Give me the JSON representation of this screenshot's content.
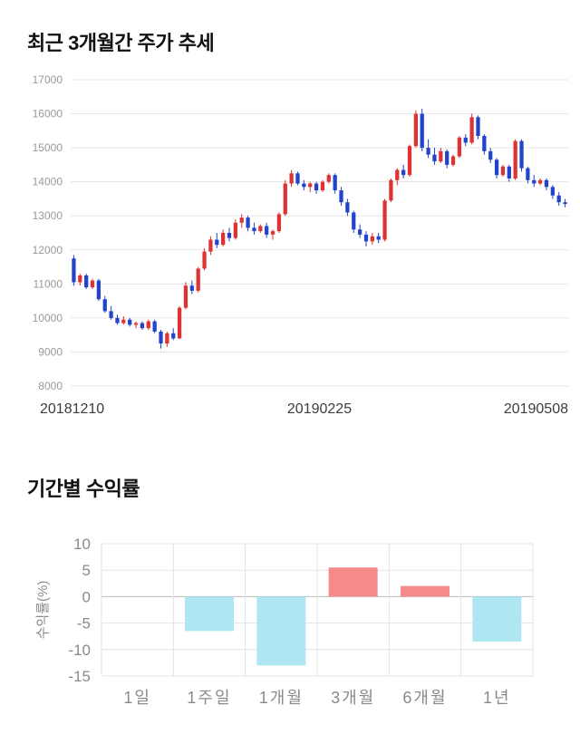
{
  "page": {
    "section1_title": "최근 3개월간 주가 추세",
    "section2_title": "기간별 수익률"
  },
  "chart_data": [
    {
      "type": "candlestick",
      "title": "최근 3개월간 주가 추세",
      "ylim": [
        8000,
        17000
      ],
      "yticks": [
        17000,
        16000,
        15000,
        14000,
        13000,
        12000,
        11000,
        10000,
        9000,
        8000
      ],
      "xticks": [
        "20181210",
        "20190225",
        "20190508"
      ],
      "up_color": "#dd3333",
      "down_color": "#2244cc",
      "grid_color": "#e6e6e6",
      "tick_color": "#999999",
      "xlabel_color": "#3c3c3c",
      "candles": [
        [
          11750,
          11850,
          10950,
          11050
        ],
        [
          11050,
          11300,
          10950,
          11250
        ],
        [
          11250,
          11300,
          10850,
          10900
        ],
        [
          10900,
          11150,
          10850,
          11100
        ],
        [
          11100,
          11150,
          10500,
          10550
        ],
        [
          10550,
          10650,
          10150,
          10200
        ],
        [
          10200,
          10350,
          9950,
          10000
        ],
        [
          10000,
          10100,
          9800,
          9850
        ],
        [
          9850,
          10050,
          9800,
          9950
        ],
        [
          9950,
          10000,
          9750,
          9800
        ],
        [
          9800,
          9900,
          9700,
          9850
        ],
        [
          9850,
          9900,
          9650,
          9700
        ],
        [
          9700,
          9950,
          9650,
          9900
        ],
        [
          9900,
          9950,
          9550,
          9600
        ],
        [
          9600,
          9650,
          9100,
          9250
        ],
        [
          9250,
          9600,
          9150,
          9550
        ],
        [
          9550,
          9700,
          9350,
          9400
        ],
        [
          9400,
          10350,
          9380,
          10300
        ],
        [
          10300,
          11050,
          10250,
          10950
        ],
        [
          10950,
          11100,
          10700,
          10800
        ],
        [
          10800,
          11500,
          10750,
          11450
        ],
        [
          11450,
          12050,
          11400,
          11950
        ],
        [
          11950,
          12400,
          11850,
          12300
        ],
        [
          12300,
          12500,
          12050,
          12150
        ],
        [
          12150,
          12600,
          12100,
          12500
        ],
        [
          12500,
          12650,
          12250,
          12350
        ],
        [
          12350,
          12900,
          12300,
          12800
        ],
        [
          12800,
          13050,
          12650,
          12950
        ],
        [
          12950,
          13000,
          12550,
          12650
        ],
        [
          12650,
          12800,
          12450,
          12550
        ],
        [
          12550,
          12750,
          12500,
          12700
        ],
        [
          12700,
          12800,
          12350,
          12450
        ],
        [
          12450,
          12600,
          12300,
          12550
        ],
        [
          12550,
          13100,
          12500,
          13050
        ],
        [
          13050,
          14050,
          13000,
          13950
        ],
        [
          13950,
          14350,
          13850,
          14250
        ],
        [
          14250,
          14300,
          13900,
          13950
        ],
        [
          13950,
          14050,
          13750,
          13850
        ],
        [
          13850,
          14000,
          13700,
          13950
        ],
        [
          13950,
          14000,
          13650,
          13750
        ],
        [
          13750,
          14050,
          13700,
          14000
        ],
        [
          14000,
          14250,
          13950,
          14200
        ],
        [
          14200,
          14250,
          13650,
          13750
        ],
        [
          13750,
          13850,
          13300,
          13400
        ],
        [
          13400,
          13500,
          13000,
          13100
        ],
        [
          13100,
          13150,
          12500,
          12600
        ],
        [
          12600,
          12750,
          12350,
          12450
        ],
        [
          12450,
          12550,
          12100,
          12250
        ],
        [
          12250,
          12500,
          12150,
          12400
        ],
        [
          12400,
          12500,
          12200,
          12300
        ],
        [
          12300,
          13500,
          12250,
          13450
        ],
        [
          13450,
          14100,
          13400,
          14050
        ],
        [
          14050,
          14400,
          13900,
          14350
        ],
        [
          14350,
          14500,
          14100,
          14200
        ],
        [
          14200,
          15100,
          14150,
          15050
        ],
        [
          15050,
          16100,
          15000,
          16000
        ],
        [
          16000,
          16150,
          14900,
          15000
        ],
        [
          15000,
          15250,
          14700,
          14800
        ],
        [
          14800,
          15000,
          14500,
          14600
        ],
        [
          14600,
          15000,
          14550,
          14900
        ],
        [
          14900,
          14950,
          14400,
          14500
        ],
        [
          14500,
          14800,
          14450,
          14750
        ],
        [
          14750,
          15350,
          14700,
          15300
        ],
        [
          15300,
          15400,
          15050,
          15150
        ],
        [
          15150,
          16000,
          15100,
          15900
        ],
        [
          15900,
          15950,
          15250,
          15350
        ],
        [
          15350,
          15400,
          14800,
          14900
        ],
        [
          14900,
          15000,
          14550,
          14650
        ],
        [
          14650,
          14700,
          14100,
          14200
        ],
        [
          14200,
          14500,
          14150,
          14450
        ],
        [
          14450,
          14500,
          14000,
          14100
        ],
        [
          14100,
          15250,
          14050,
          15200
        ],
        [
          15200,
          15250,
          14300,
          14400
        ],
        [
          14400,
          14450,
          13950,
          14050
        ],
        [
          14050,
          14200,
          13850,
          13950
        ],
        [
          13950,
          14100,
          13900,
          14050
        ],
        [
          14050,
          14100,
          13750,
          13850
        ],
        [
          13850,
          13900,
          13500,
          13600
        ],
        [
          13600,
          13700,
          13300,
          13400
        ],
        [
          13400,
          13500,
          13250,
          13350
        ]
      ]
    },
    {
      "type": "bar",
      "title": "기간별 수익률",
      "ylabel": "수익률(%)",
      "ylim": [
        -15,
        10
      ],
      "yticks": [
        10,
        5,
        0,
        -5,
        -10,
        -15
      ],
      "categories": [
        "1일",
        "1주일",
        "1개월",
        "3개월",
        "6개월",
        "1년"
      ],
      "values": [
        0,
        -6.5,
        -13,
        5.5,
        2,
        -8.5
      ],
      "positive_color": "#f48a8a",
      "negative_color": "#aee6f2",
      "grid_color": "#e3e3e3",
      "zero_line_color": "#bbbbbb",
      "tick_color": "#8a8a8a"
    }
  ]
}
